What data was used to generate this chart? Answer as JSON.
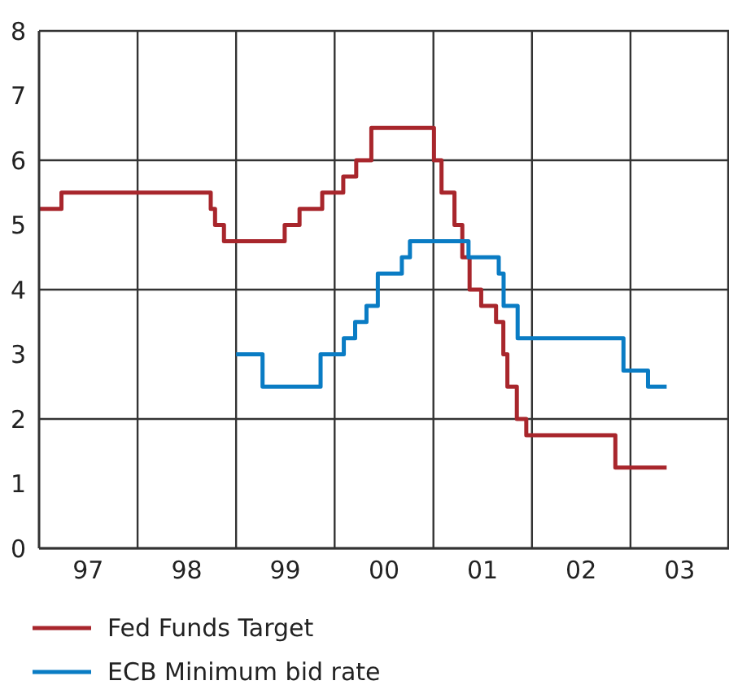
{
  "chart_data": {
    "type": "step",
    "xlim": [
      "1997-01-01",
      "2004-01-01"
    ],
    "xticks": [
      {
        "value": "1997-07-02",
        "label": "97"
      },
      {
        "value": "1998-01-01",
        "label": null
      },
      {
        "value": "1998-07-02",
        "label": "98"
      },
      {
        "value": "1999-01-01",
        "label": null
      },
      {
        "value": "1999-07-02",
        "label": "99"
      },
      {
        "value": "2000-01-01",
        "label": null
      },
      {
        "value": "2000-07-02",
        "label": "00"
      },
      {
        "value": "2001-01-01",
        "label": null
      },
      {
        "value": "2001-07-02",
        "label": "01"
      },
      {
        "value": "2002-01-01",
        "label": null
      },
      {
        "value": "2002-07-02",
        "label": "02"
      },
      {
        "value": "2003-01-01",
        "label": null
      },
      {
        "value": "2003-07-02",
        "label": "03"
      }
    ],
    "ylim": [
      0,
      8
    ],
    "yticks": [
      0,
      1,
      2,
      3,
      4,
      5,
      6,
      7,
      8
    ],
    "grid": true,
    "legend": "bottom",
    "series": [
      {
        "name": "Fed Funds Target",
        "color": "#a8262c",
        "x": [
          "1997-01-01",
          "1997-03-25",
          "1998-09-29",
          "1998-10-15",
          "1998-11-17",
          "1999-06-30",
          "1999-08-24",
          "1999-11-16",
          "2000-02-02",
          "2000-03-21",
          "2000-05-16",
          "2001-01-03",
          "2001-01-31",
          "2001-03-20",
          "2001-04-18",
          "2001-05-15",
          "2001-06-27",
          "2001-08-21",
          "2001-09-17",
          "2001-10-02",
          "2001-11-06",
          "2001-12-11",
          "2002-11-06",
          "2003-05-15"
        ],
        "values": [
          5.25,
          5.5,
          5.25,
          5.0,
          4.75,
          5.0,
          5.25,
          5.5,
          5.75,
          6.0,
          6.5,
          6.0,
          5.5,
          5.0,
          4.5,
          4.0,
          3.75,
          3.5,
          3.0,
          2.5,
          2.0,
          1.75,
          1.25,
          1.25
        ]
      },
      {
        "name": "ECB Minimum bid rate",
        "color": "#0a7cc4",
        "x": [
          "1999-01-01",
          "1999-04-09",
          "1999-11-10",
          "2000-02-04",
          "2000-03-17",
          "2000-04-28",
          "2000-06-09",
          "2000-09-06",
          "2000-10-06",
          "2001-05-11",
          "2001-08-31",
          "2001-09-18",
          "2001-11-09",
          "2002-12-06",
          "2003-03-07",
          "2003-05-15"
        ],
        "values": [
          3.0,
          2.5,
          3.0,
          3.25,
          3.5,
          3.75,
          4.25,
          4.5,
          4.75,
          4.5,
          4.25,
          3.75,
          3.25,
          2.75,
          2.5,
          2.5
        ]
      }
    ]
  }
}
